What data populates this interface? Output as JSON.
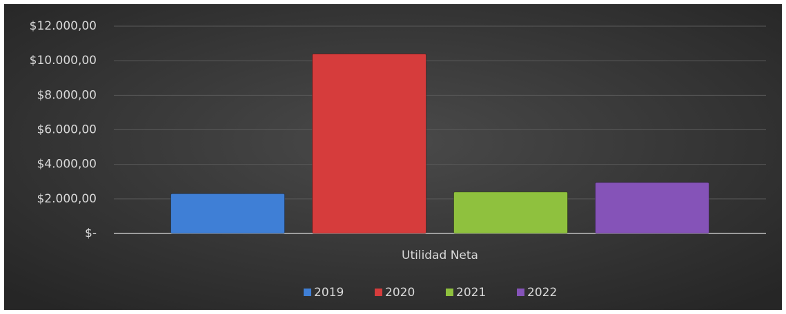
{
  "chart_data": {
    "type": "bar",
    "categories": [
      "Utilidad Neta"
    ],
    "series": [
      {
        "name": "2019",
        "color": "#3f7fd6",
        "values": [
          2300
        ]
      },
      {
        "name": "2020",
        "color": "#d63c3c",
        "values": [
          10400
        ]
      },
      {
        "name": "2021",
        "color": "#8fc13e",
        "values": [
          2400
        ]
      },
      {
        "name": "2022",
        "color": "#8553b8",
        "values": [
          2950
        ]
      }
    ],
    "ylim": [
      0,
      12000
    ],
    "yticks": [
      {
        "value": 0,
        "label": "$-"
      },
      {
        "value": 2000,
        "label": "$2.000,00"
      },
      {
        "value": 4000,
        "label": "$4.000,00"
      },
      {
        "value": 6000,
        "label": "$6.000,00"
      },
      {
        "value": 8000,
        "label": "$8.000,00"
      },
      {
        "value": 10000,
        "label": "$10.000,00"
      },
      {
        "value": 12000,
        "label": "$12.000,00"
      }
    ],
    "grid": true,
    "legend": "bottom"
  }
}
